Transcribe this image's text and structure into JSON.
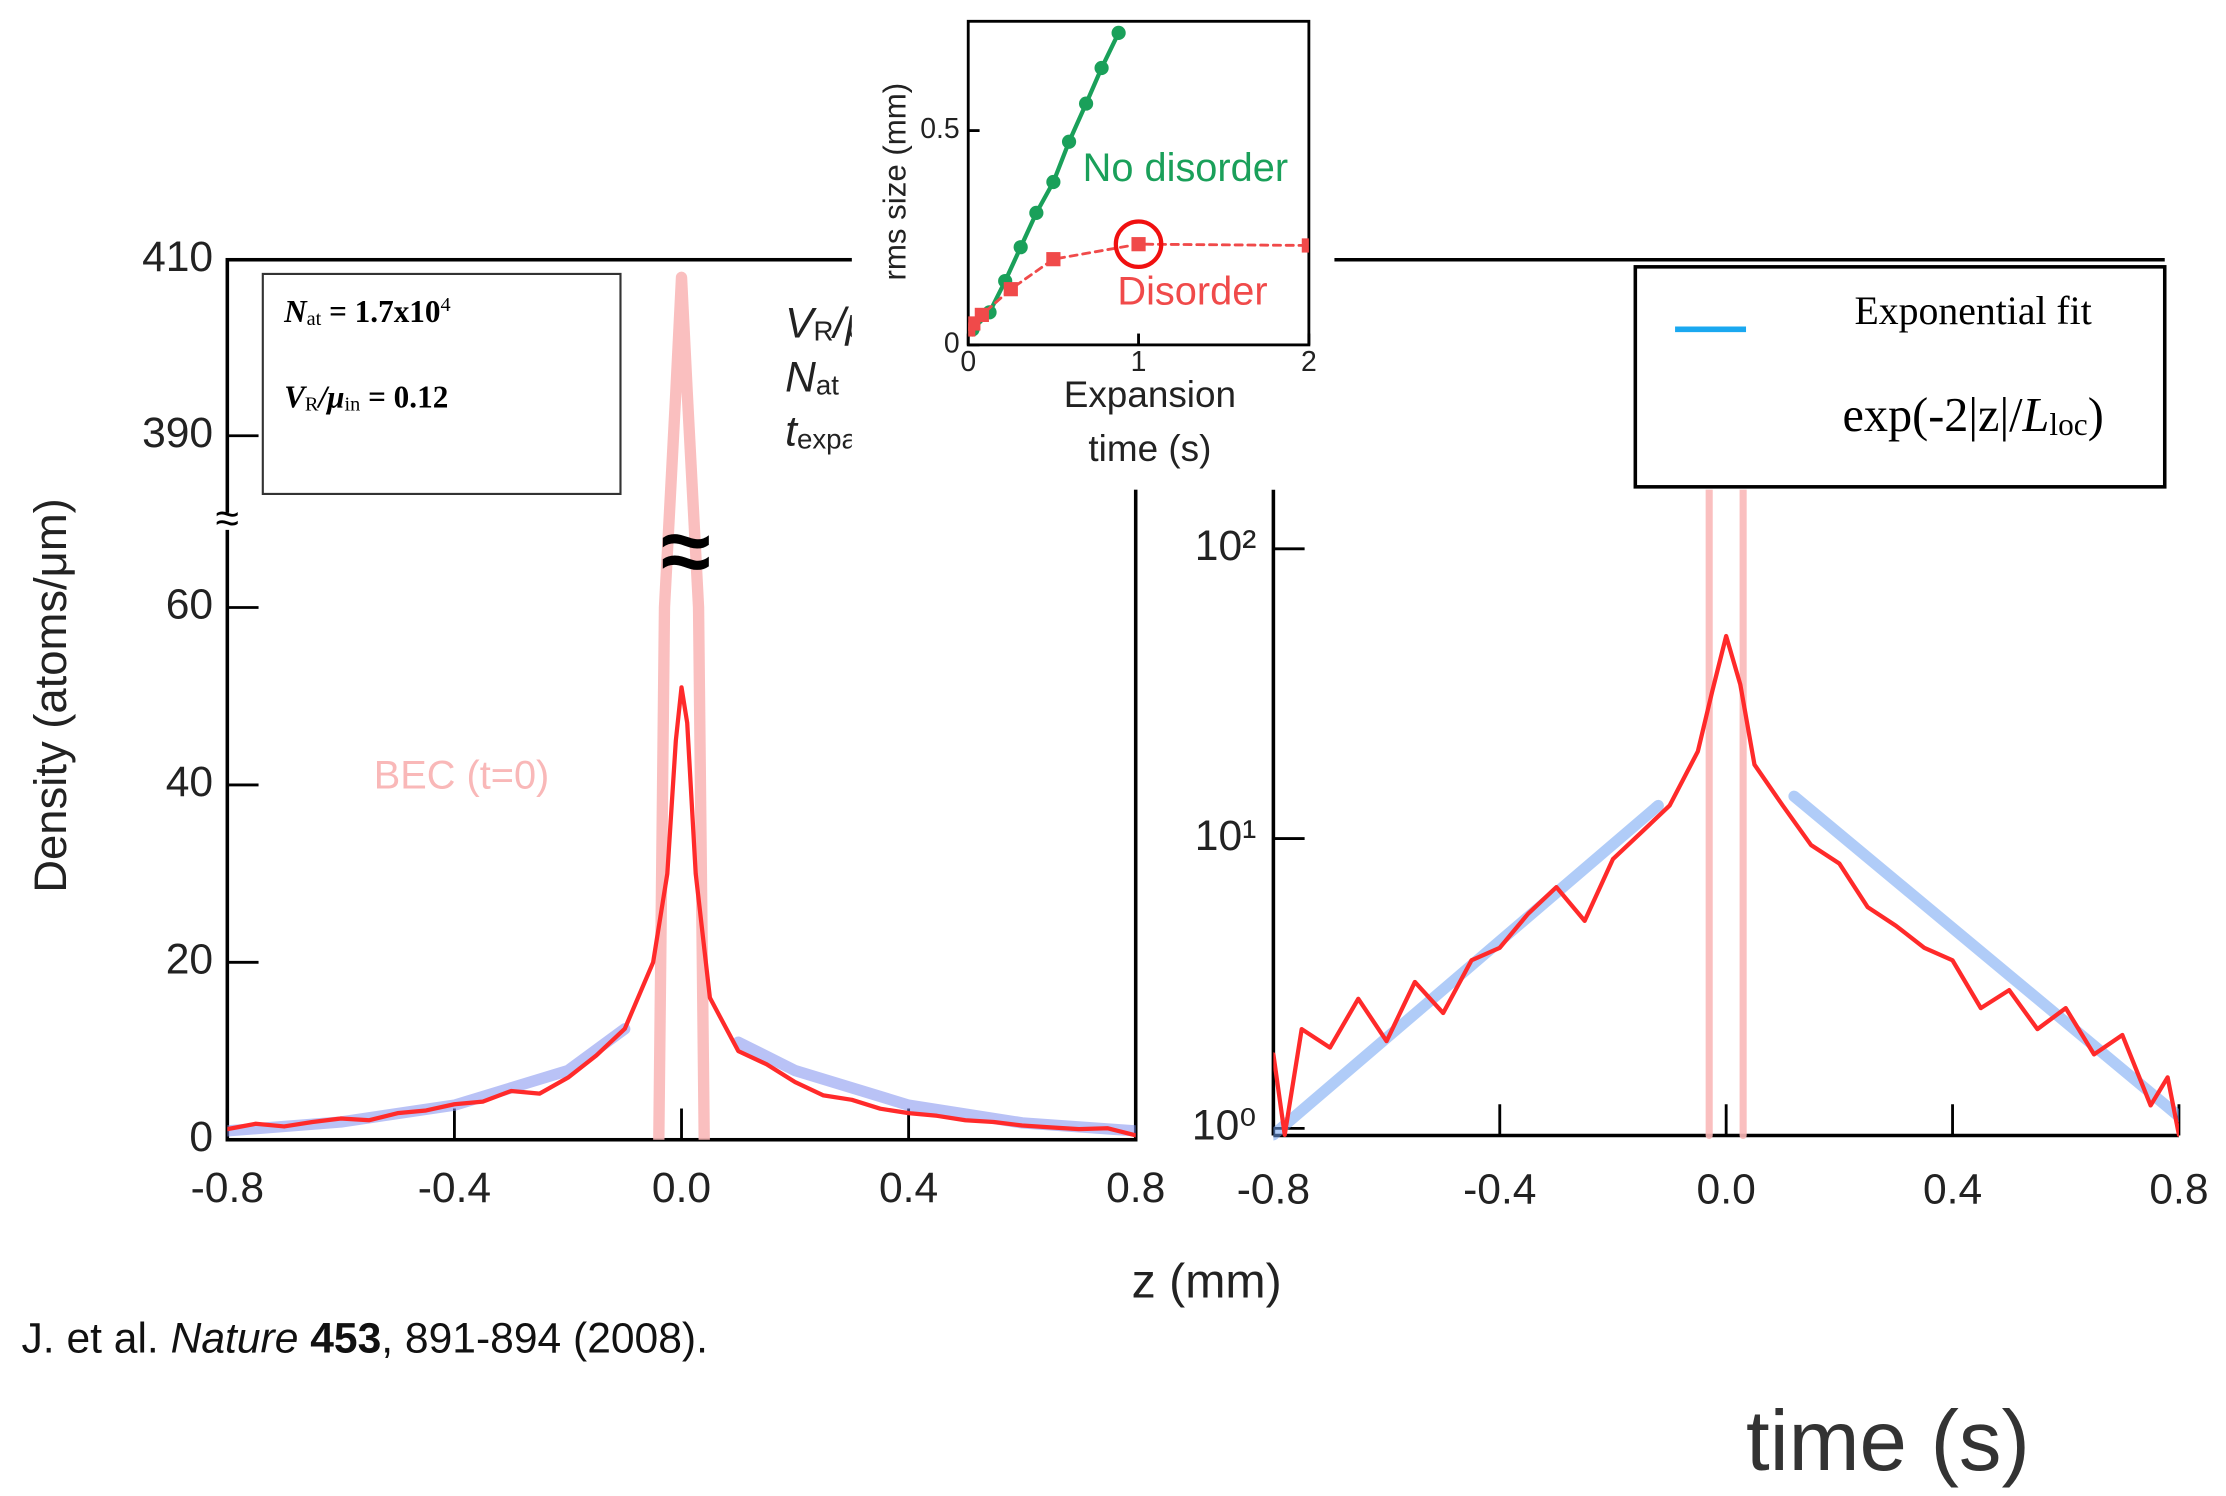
{
  "chart_data": [
    {
      "type": "line",
      "ylabel": "Density (atoms/μm)",
      "xlim": [
        -0.8,
        0.8
      ],
      "xticks": [
        -0.8,
        -0.4,
        {
          "value": 0,
          "label": "0.0"
        },
        0.4,
        0.8
      ],
      "ylim": [
        0,
        410
      ],
      "yticks": [
        0,
        20,
        40,
        60,
        390,
        410
      ],
      "ybreak": [
        67,
        383
      ],
      "break_symbol": "≈",
      "series": [
        {
          "name": "BEC (t=0)",
          "color": "#f9b8b8",
          "x": [
            -0.04,
            -0.03,
            -0.01,
            0,
            0.01,
            0.03,
            0.04
          ],
          "values": [
            0,
            60,
            395,
            408,
            395,
            60,
            0
          ]
        },
        {
          "color": "#7f8fee",
          "x": [
            -0.8,
            -0.6,
            -0.4,
            -0.2,
            -0.1,
            0,
            0.1,
            0.2,
            0.4,
            0.6,
            0.8
          ],
          "values": [
            1.0,
            2.0,
            3.9,
            7.8,
            12.5,
            null,
            11,
            7.8,
            3.9,
            1.9,
            1.0
          ]
        },
        {
          "color": "#ff2a2a",
          "x": [
            -0.8,
            -0.75,
            -0.7,
            -0.65,
            -0.6,
            -0.55,
            -0.5,
            -0.45,
            -0.4,
            -0.35,
            -0.3,
            -0.25,
            -0.2,
            -0.15,
            -0.1,
            -0.05,
            -0.025,
            -0.01,
            0,
            0.01,
            0.025,
            0.05,
            0.1,
            0.15,
            0.2,
            0.25,
            0.3,
            0.35,
            0.4,
            0.45,
            0.5,
            0.55,
            0.6,
            0.65,
            0.7,
            0.75,
            0.8
          ],
          "values": [
            1.2,
            1.8,
            1.5,
            2.0,
            2.4,
            2.2,
            3.0,
            3.3,
            4.0,
            4.3,
            5.5,
            5.2,
            7.0,
            9.5,
            12.5,
            20,
            30,
            45,
            51,
            47,
            30,
            16,
            10,
            8.5,
            6.5,
            5.0,
            4.5,
            3.5,
            3.0,
            2.7,
            2.2,
            2.0,
            1.6,
            1.4,
            1.2,
            1.3,
            0.5
          ]
        }
      ],
      "info_box": [
        [
          {
            "bi": "N"
          },
          {
            "sub": "at"
          },
          {
            "b": " = 1.7x10"
          },
          {
            "sup": "4"
          }
        ],
        [
          {
            "bi": "V"
          },
          {
            "sub": "R"
          },
          {
            "bi": "/μ"
          },
          {
            "sub": "in"
          },
          {
            "b": " = 0.12"
          }
        ]
      ],
      "overlay_labels": [
        [
          {
            "i": "V"
          },
          {
            "sub": "R"
          },
          {
            "i": "/μ"
          }
        ],
        [
          {
            "i": "N"
          },
          {
            "sub": "at"
          }
        ],
        [
          {
            "i": "t"
          },
          {
            "sub": "expa"
          }
        ]
      ]
    },
    {
      "type": "line",
      "xlabel": "z (mm)",
      "ylog": true,
      "xlim": [
        -0.8,
        0.8
      ],
      "xticks": [
        -0.8,
        -0.4,
        {
          "value": 0,
          "label": "0.0"
        },
        0.4,
        0.8
      ],
      "ylim": [
        0.945,
        160
      ],
      "yticks": [
        {
          "value": 1,
          "label": "10⁰"
        },
        {
          "value": 10,
          "label": "10¹"
        },
        {
          "value": 100,
          "label": "10²"
        }
      ],
      "legend": "upper right",
      "legend_note": [
        {
          "text": "exp(-2|z|/"
        },
        {
          "i": "L"
        },
        {
          "sub": "loc"
        },
        {
          "text": ")"
        }
      ],
      "series": [
        {
          "color": "#f9b8b8",
          "x": [
            -0.03,
            -0.03,
            0,
            0.03,
            0.03
          ],
          "values": [
            0.945,
            160,
            null,
            160,
            0.945
          ]
        },
        {
          "name": "Exponential fit",
          "color": "#6fa3f2",
          "x": [
            -0.8,
            -0.12,
            0,
            0.12,
            0.8
          ],
          "values": [
            0.95,
            13,
            null,
            14,
            1.1
          ]
        },
        {
          "color": "#ff2a2a",
          "x": [
            -0.8,
            -0.78,
            -0.75,
            -0.7,
            -0.65,
            -0.6,
            -0.55,
            -0.5,
            -0.45,
            -0.4,
            -0.35,
            -0.3,
            -0.25,
            -0.2,
            -0.15,
            -0.1,
            -0.05,
            -0.025,
            0,
            0.025,
            0.05,
            0.1,
            0.15,
            0.2,
            0.25,
            0.3,
            0.35,
            0.4,
            0.45,
            0.5,
            0.55,
            0.6,
            0.65,
            0.7,
            0.75,
            0.78,
            0.8
          ],
          "values": [
            1.8,
            0.95,
            2.2,
            1.9,
            2.8,
            2.0,
            3.2,
            2.5,
            3.8,
            4.2,
            5.5,
            6.8,
            5.2,
            8.5,
            10.5,
            13,
            20,
            32,
            50,
            34,
            18,
            13,
            9.5,
            8.2,
            5.8,
            5.0,
            4.2,
            3.8,
            2.6,
            3.0,
            2.2,
            2.6,
            1.8,
            2.1,
            1.2,
            1.5,
            0.95
          ]
        }
      ]
    },
    {
      "type": "line",
      "ylabel": "rms size (mm)",
      "xlabel": [
        "Expansion",
        "time (s)"
      ],
      "xlim": [
        0,
        2
      ],
      "xticks": [
        0,
        1,
        2
      ],
      "ylim": [
        0,
        0.755
      ],
      "yticks": [
        0,
        0.5
      ],
      "series": [
        {
          "name": "No disorder",
          "color": "#1aa05a",
          "markers": "circle",
          "x": [
            0.025,
            0.125,
            0.217,
            0.308,
            0.4,
            0.5,
            0.592,
            0.692,
            0.783,
            0.883
          ],
          "values": [
            0.036,
            0.076,
            0.149,
            0.228,
            0.308,
            0.38,
            0.474,
            0.563,
            0.646,
            0.728
          ]
        },
        {
          "name": "Disorder",
          "color": "#f04a4a",
          "markers": "square",
          "dashed": true,
          "x": [
            0,
            0.03,
            0.08,
            0.25,
            0.5,
            1,
            2
          ],
          "values": [
            0.036,
            0.05,
            0.07,
            0.13,
            0.2,
            0.235,
            0.232
          ]
        }
      ],
      "highlight": {
        "series": 1,
        "index": 5
      }
    }
  ],
  "citation": [
    {
      "text": "J. et al. "
    },
    {
      "i": "Nature"
    },
    {
      "b": " 453"
    },
    {
      "text": ", 891-894 (2008)."
    }
  ],
  "stray_text": "time (s)"
}
